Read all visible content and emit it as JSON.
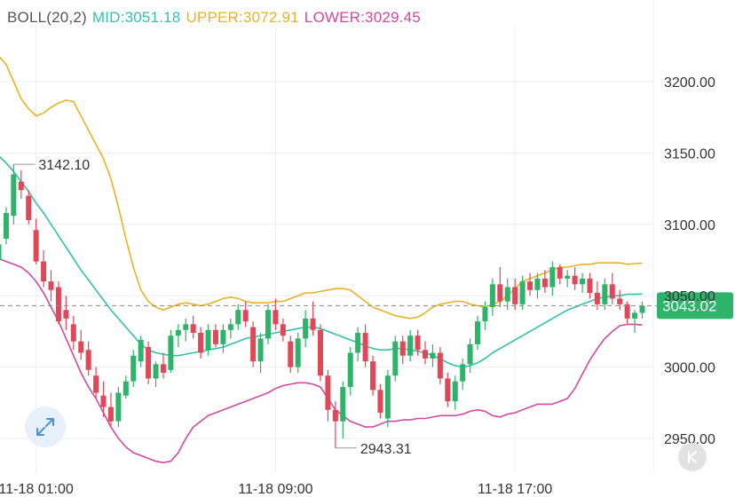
{
  "legend": {
    "name": "BOLL(20,2)",
    "mid": "MID:3051.18",
    "upper": "UPPER:3072.91",
    "lower": "LOWER:3029.45"
  },
  "colors": {
    "up": "#2db36a",
    "down": "#e0485a",
    "mid": "#33c2a6",
    "upper": "#e8b423",
    "lower": "#d24a9e",
    "last_price_badge": "#2db36a",
    "grid": "#eeeeee",
    "axis_text": "#333333",
    "legend_name": "#555555"
  },
  "icons": {
    "expand": "expand-arrows-icon",
    "k_button": "k-letter-icon"
  },
  "chart_data": {
    "type": "candlestick",
    "title": "",
    "ylim": [
      2930,
      3240
    ],
    "y_ticks": [
      "3200.00",
      "3150.00",
      "3100.00",
      "3050.00",
      "3000.00",
      "2950.00"
    ],
    "y_tick_values": [
      3200,
      3150,
      3100,
      3050,
      3000,
      2950
    ],
    "x_ticks": [
      {
        "label": "11-18 01:00",
        "index": 5
      },
      {
        "label": "11-18 09:00",
        "index": 37
      },
      {
        "label": "11-18 17:00",
        "index": 69
      }
    ],
    "last_price": {
      "value": 3043.02,
      "label": "3043.02"
    },
    "annotations": [
      {
        "label": "3142.10",
        "value": 3142.1,
        "index": 2
      },
      {
        "label": "2943.31",
        "value": 2943.31,
        "index": 45
      }
    ],
    "candles": [
      [
        3075,
        3094,
        3068,
        3086
      ],
      [
        3090,
        3112,
        3086,
        3108
      ],
      [
        3106,
        3142.1,
        3100,
        3135
      ],
      [
        3130,
        3138,
        3118,
        3124
      ],
      [
        3120,
        3124,
        3100,
        3103
      ],
      [
        3096,
        3104,
        3072,
        3074
      ],
      [
        3074,
        3082,
        3056,
        3060
      ],
      [
        3060,
        3068,
        3046,
        3054
      ],
      [
        3056,
        3060,
        3030,
        3032
      ],
      [
        3040,
        3050,
        3026,
        3034
      ],
      [
        3030,
        3036,
        3012,
        3018
      ],
      [
        3018,
        3026,
        3005,
        3010
      ],
      [
        3012,
        3018,
        2994,
        2998
      ],
      [
        2994,
        3000,
        2978,
        2982
      ],
      [
        2980,
        2990,
        2965,
        2972
      ],
      [
        2972,
        2982,
        2958,
        2962
      ],
      [
        2962,
        2986,
        2958,
        2982
      ],
      [
        2980,
        2994,
        2978,
        2990
      ],
      [
        2990,
        3012,
        2986,
        3008
      ],
      [
        3004,
        3022,
        3000,
        3019
      ],
      [
        3014,
        3018,
        2988,
        2992
      ],
      [
        2992,
        3004,
        2986,
        3002
      ],
      [
        3002,
        3010,
        2992,
        2996
      ],
      [
        2998,
        3026,
        2996,
        3022
      ],
      [
        3022,
        3030,
        3014,
        3026
      ],
      [
        3026,
        3034,
        3018,
        3030
      ],
      [
        3030,
        3036,
        3020,
        3024
      ],
      [
        3024,
        3028,
        3006,
        3010
      ],
      [
        3012,
        3030,
        3008,
        3026
      ],
      [
        3026,
        3030,
        3014,
        3016
      ],
      [
        3016,
        3030,
        3010,
        3026
      ],
      [
        3026,
        3034,
        3020,
        3030
      ],
      [
        3030,
        3044,
        3026,
        3040
      ],
      [
        3040,
        3046,
        3028,
        3032
      ],
      [
        3028,
        3032,
        3000,
        3004
      ],
      [
        3004,
        3024,
        2996,
        3020
      ],
      [
        3020,
        3044,
        3016,
        3040
      ],
      [
        3040,
        3048,
        3026,
        3030
      ],
      [
        3030,
        3034,
        3018,
        3022
      ],
      [
        3018,
        3022,
        2996,
        3000
      ],
      [
        3000,
        3024,
        2996,
        3020
      ],
      [
        3020,
        3040,
        3014,
        3034
      ],
      [
        3034,
        3046,
        3022,
        3026
      ],
      [
        3026,
        3030,
        2990,
        2994
      ],
      [
        2994,
        2998,
        2962,
        2970
      ],
      [
        2970,
        2976,
        2943.31,
        2962
      ],
      [
        2962,
        2990,
        2950,
        2986
      ],
      [
        2986,
        3014,
        2980,
        3010
      ],
      [
        3010,
        3028,
        3004,
        3024
      ],
      [
        3024,
        3030,
        3000,
        3004
      ],
      [
        3004,
        3008,
        2980,
        2984
      ],
      [
        2984,
        2988,
        2964,
        2968
      ],
      [
        2964,
        2998,
        2958,
        2994
      ],
      [
        2994,
        3022,
        2990,
        3018
      ],
      [
        3018,
        3022,
        3002,
        3008
      ],
      [
        3008,
        3026,
        3004,
        3022
      ],
      [
        3022,
        3026,
        3008,
        3012
      ],
      [
        3012,
        3018,
        3002,
        3006
      ],
      [
        3006,
        3016,
        3000,
        3010
      ],
      [
        3010,
        3014,
        2988,
        2992
      ],
      [
        2992,
        2996,
        2972,
        2976
      ],
      [
        2976,
        2994,
        2970,
        2990
      ],
      [
        2990,
        3006,
        2984,
        3002
      ],
      [
        3002,
        3020,
        2996,
        3016
      ],
      [
        3016,
        3036,
        3012,
        3032
      ],
      [
        3032,
        3046,
        3026,
        3042
      ],
      [
        3042,
        3062,
        3036,
        3058
      ],
      [
        3058,
        3070,
        3042,
        3046
      ],
      [
        3046,
        3062,
        3040,
        3056
      ],
      [
        3056,
        3062,
        3040,
        3044
      ],
      [
        3044,
        3064,
        3040,
        3060
      ],
      [
        3060,
        3066,
        3050,
        3054
      ],
      [
        3054,
        3066,
        3048,
        3062
      ],
      [
        3062,
        3068,
        3052,
        3056
      ],
      [
        3056,
        3074,
        3050,
        3070
      ],
      [
        3070,
        3072,
        3058,
        3062
      ],
      [
        3062,
        3068,
        3056,
        3064
      ],
      [
        3064,
        3070,
        3054,
        3058
      ],
      [
        3058,
        3066,
        3052,
        3062
      ],
      [
        3062,
        3066,
        3048,
        3052
      ],
      [
        3052,
        3060,
        3040,
        3044
      ],
      [
        3044,
        3062,
        3040,
        3058
      ],
      [
        3058,
        3066,
        3044,
        3048
      ],
      [
        3048,
        3054,
        3040,
        3044
      ],
      [
        3044,
        3046,
        3030,
        3034
      ],
      [
        3034,
        3040,
        3024,
        3038
      ],
      [
        3038,
        3046,
        3034,
        3043.02
      ]
    ],
    "series": [
      {
        "name": "UPPER",
        "values": [
          3218,
          3212,
          3200,
          3188,
          3181,
          3176,
          3178,
          3182,
          3185,
          3187,
          3186,
          3176,
          3166,
          3156,
          3146,
          3132,
          3112,
          3090,
          3070,
          3054,
          3046,
          3042,
          3040,
          3042,
          3044,
          3045,
          3044,
          3043,
          3044,
          3046,
          3048,
          3049,
          3048,
          3046,
          3045,
          3045,
          3045,
          3046,
          3046,
          3048,
          3050,
          3052,
          3052,
          3053,
          3054,
          3055,
          3055,
          3054,
          3050,
          3046,
          3042,
          3040,
          3038,
          3036,
          3035,
          3034,
          3035,
          3038,
          3042,
          3044,
          3045,
          3046,
          3046,
          3044,
          3043,
          3042,
          3044,
          3046,
          3050,
          3055,
          3060,
          3062,
          3064,
          3066,
          3068,
          3070,
          3070,
          3071,
          3072,
          3072,
          3073,
          3073,
          3073,
          3073,
          3072,
          3072.5,
          3072.91
        ]
      },
      {
        "name": "MID",
        "values": [
          3148,
          3143,
          3137,
          3130,
          3123,
          3115,
          3108,
          3100,
          3092,
          3084,
          3076,
          3068,
          3061,
          3054,
          3047,
          3040,
          3034,
          3028,
          3022,
          3016,
          3012,
          3010,
          3009,
          3008,
          3008,
          3009,
          3010,
          3011,
          3012,
          3013,
          3014,
          3016,
          3018,
          3020,
          3021,
          3022,
          3023,
          3024,
          3025,
          3026,
          3027,
          3028,
          3028,
          3027,
          3025,
          3023,
          3021,
          3019,
          3017,
          3015,
          3013,
          3012,
          3012,
          3013,
          3013,
          3012,
          3011,
          3010,
          3008,
          3006,
          3003,
          3001,
          3000,
          3001,
          3003,
          3006,
          3010,
          3013,
          3016,
          3019,
          3022,
          3025,
          3028,
          3031,
          3034,
          3037,
          3040,
          3042,
          3044,
          3046,
          3048,
          3049,
          3050,
          3050,
          3051,
          3051,
          3051.18
        ]
      },
      {
        "name": "LOWER",
        "values": [
          3076,
          3074,
          3072,
          3070,
          3066,
          3060,
          3052,
          3042,
          3032,
          3020,
          3008,
          2996,
          2986,
          2978,
          2968,
          2958,
          2950,
          2944,
          2940,
          2938,
          2936,
          2934,
          2933,
          2934,
          2940,
          2950,
          2958,
          2962,
          2966,
          2968,
          2970,
          2972,
          2974,
          2976,
          2978,
          2980,
          2982,
          2985,
          2987,
          2988,
          2989,
          2989,
          2988,
          2986,
          2978,
          2970,
          2966,
          2962,
          2960,
          2958,
          2958,
          2960,
          2962,
          2962,
          2963,
          2963,
          2964,
          2964,
          2965,
          2966,
          2966,
          2966,
          2967,
          2969,
          2970,
          2969,
          2966,
          2965,
          2967,
          2968,
          2970,
          2972,
          2974,
          2974,
          2974,
          2976,
          2978,
          2985,
          2995,
          3005,
          3013,
          3020,
          3025,
          3029,
          3030,
          3030,
          3029.45
        ]
      }
    ]
  }
}
